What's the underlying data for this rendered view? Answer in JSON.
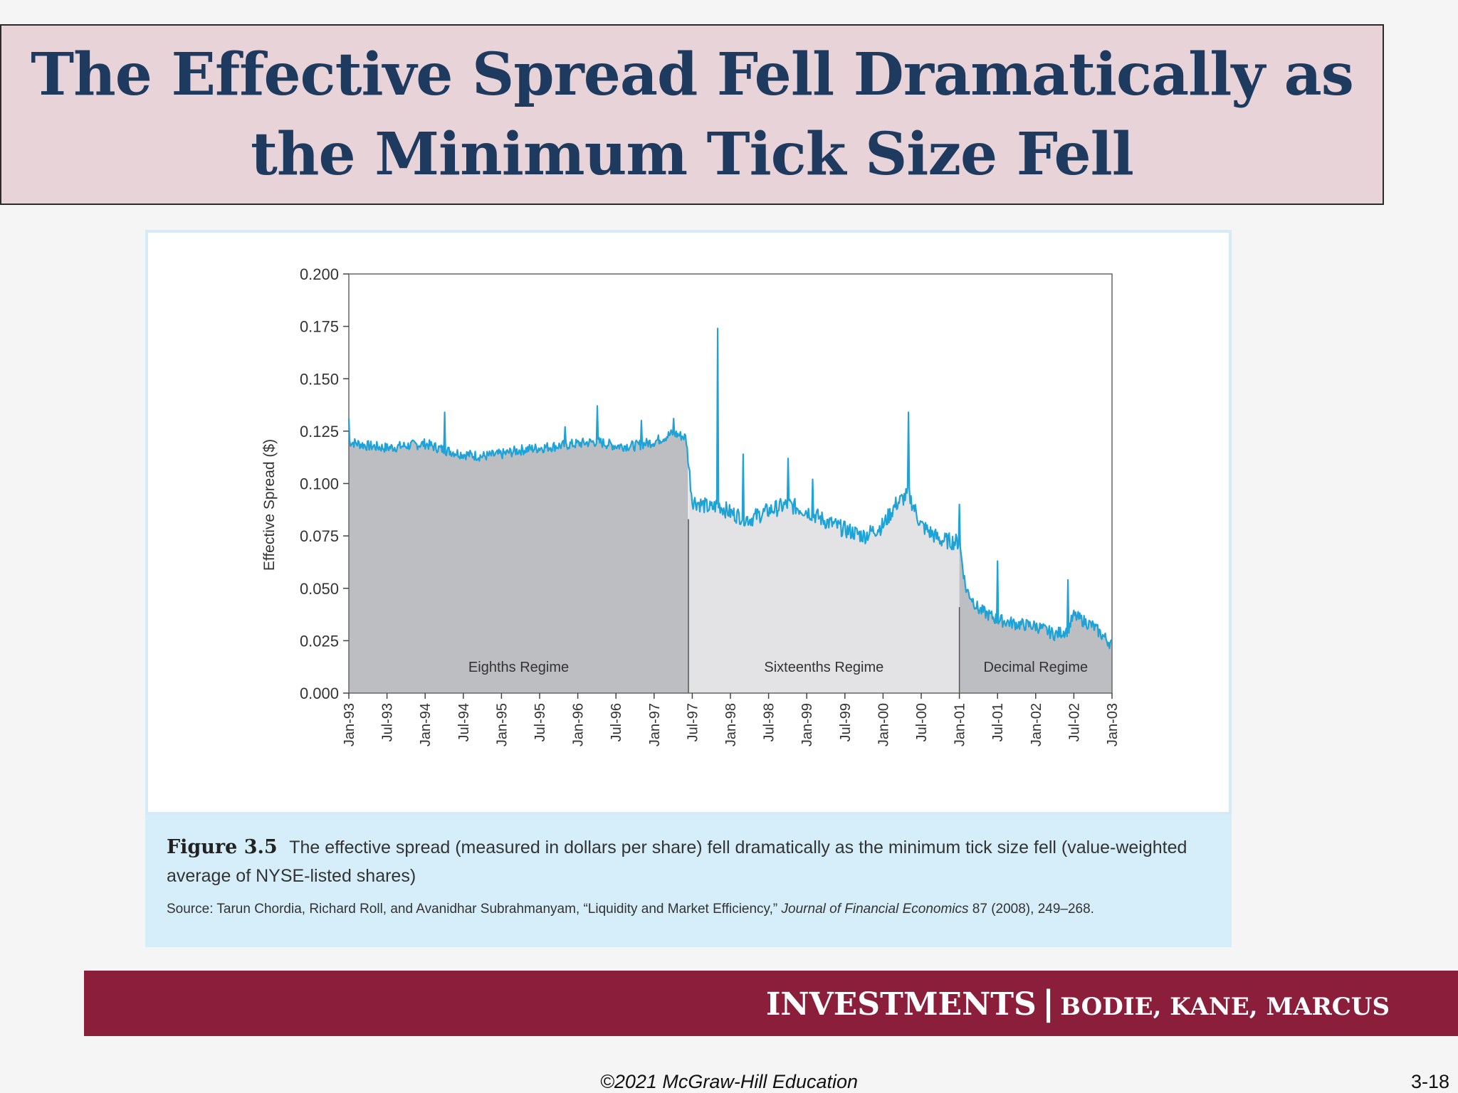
{
  "slide": {
    "title_line1": "The Effective Spread Fell Dramatically as",
    "title_line2": "the Minimum Tick Size Fell",
    "banner_main": "INVESTMENTS",
    "banner_sep": "|",
    "banner_authors": "BODIE, KANE, MARCUS",
    "copyright": "©2021 McGraw-Hill Education",
    "page_number": "3-18"
  },
  "caption": {
    "label": "Figure 3.5",
    "text": "The effective spread (measured in dollars per share) fell dramatically as the minimum tick size fell (value-weighted average of NYSE-listed shares)",
    "source_prefix": "Source: Tarun Chordia, Richard Roll, and Avanidhar Subrahmanyam, “Liquidity and Market Efficiency,”",
    "source_journal": "Journal of Financial Economics",
    "source_suffix": "87 (2008), 249–268."
  },
  "colors": {
    "line": "#1fa3d6",
    "shade_dark": "#bdbec1",
    "shade_light": "#e3e3e6"
  },
  "chart_data": {
    "type": "line",
    "title": "",
    "xlabel": "",
    "ylabel": "Effective Spread ($)",
    "ylim": [
      0,
      0.2
    ],
    "yticks": [
      "0.000",
      "0.025",
      "0.050",
      "0.075",
      "0.100",
      "0.125",
      "0.150",
      "0.175",
      "0.200"
    ],
    "xticks": [
      "Jan-93",
      "Jul-93",
      "Jan-94",
      "Jul-94",
      "Jan-95",
      "Jul-95",
      "Jan-96",
      "Jul-96",
      "Jan-97",
      "Jul-97",
      "Jan-98",
      "Jul-98",
      "Jan-99",
      "Jul-99",
      "Jan-00",
      "Jul-00",
      "Jan-01",
      "Jul-01",
      "Jan-02",
      "Jul-02",
      "Jan-03"
    ],
    "grid": false,
    "regimes": [
      {
        "label": "Eighths Regime",
        "start": "Jan-93",
        "end": "Jun-97",
        "shade": "dark"
      },
      {
        "label": "Sixteenths Regime",
        "start": "Jun-97",
        "end": "Jan-01",
        "shade": "light"
      },
      {
        "label": "Decimal Regime",
        "start": "Jan-01",
        "end": "Jan-03",
        "shade": "dark"
      }
    ],
    "series": [
      {
        "x": [
          "1993-01",
          "1993-04",
          "1993-07",
          "1993-10",
          "1994-01",
          "1994-04",
          "1994-07",
          "1994-10",
          "1995-01",
          "1995-04",
          "1995-07",
          "1995-10",
          "1996-01",
          "1996-04",
          "1996-07",
          "1996-10",
          "1997-01",
          "1997-04",
          "1997-06",
          "1997-07",
          "1997-10",
          "1997-11",
          "1998-01",
          "1998-04",
          "1998-07",
          "1998-10",
          "1999-01",
          "1999-04",
          "1999-07",
          "1999-10",
          "2000-01",
          "2000-03",
          "2000-05",
          "2000-07",
          "2000-10",
          "2001-01",
          "2001-02",
          "2001-04",
          "2001-07",
          "2001-10",
          "2002-01",
          "2002-04",
          "2002-06",
          "2002-07",
          "2002-10",
          "2003-01"
        ],
        "values": [
          0.12,
          0.118,
          0.117,
          0.118,
          0.119,
          0.116,
          0.114,
          0.113,
          0.114,
          0.116,
          0.117,
          0.118,
          0.119,
          0.12,
          0.118,
          0.118,
          0.12,
          0.124,
          0.122,
          0.092,
          0.088,
          0.09,
          0.086,
          0.083,
          0.087,
          0.09,
          0.087,
          0.082,
          0.078,
          0.075,
          0.08,
          0.09,
          0.095,
          0.08,
          0.073,
          0.072,
          0.05,
          0.04,
          0.035,
          0.033,
          0.032,
          0.028,
          0.03,
          0.037,
          0.032,
          0.023
        ]
      }
    ],
    "spikes": [
      {
        "x": "1993-01",
        "value": 0.131
      },
      {
        "x": "1994-04",
        "value": 0.134
      },
      {
        "x": "1995-11",
        "value": 0.127
      },
      {
        "x": "1996-04",
        "value": 0.137
      },
      {
        "x": "1996-11",
        "value": 0.13
      },
      {
        "x": "1997-04",
        "value": 0.131
      },
      {
        "x": "1997-11",
        "value": 0.174
      },
      {
        "x": "1998-03",
        "value": 0.114
      },
      {
        "x": "1998-10",
        "value": 0.112
      },
      {
        "x": "1999-02",
        "value": 0.102
      },
      {
        "x": "2000-05",
        "value": 0.134
      },
      {
        "x": "2001-01",
        "value": 0.09
      },
      {
        "x": "2001-07",
        "value": 0.063
      },
      {
        "x": "2002-06",
        "value": 0.054
      }
    ]
  }
}
